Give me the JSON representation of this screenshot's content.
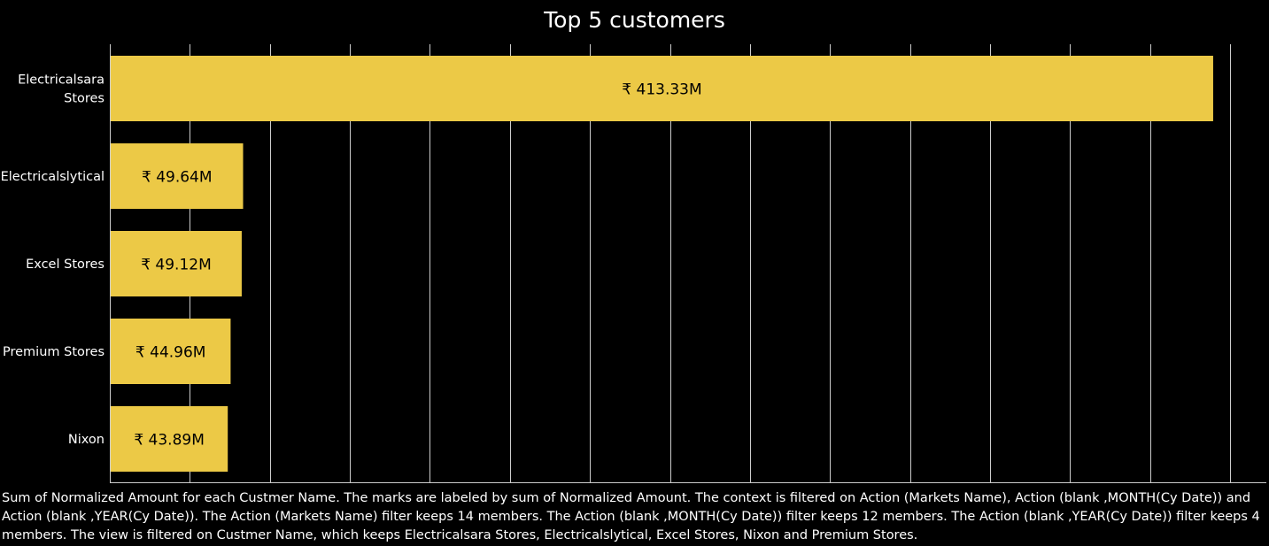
{
  "chart_data": {
    "type": "bar",
    "orientation": "horizontal",
    "title": "Top 5 customers",
    "categories": [
      [
        "Electricalsara",
        "Stores"
      ],
      [
        "Electricalslytical"
      ],
      [
        "Excel Stores"
      ],
      [
        "Premium Stores"
      ],
      [
        "Nixon"
      ]
    ],
    "values": [
      413.33,
      49.64,
      49.12,
      44.96,
      43.89
    ],
    "value_labels": [
      "₹ 413.33M",
      "₹ 49.64M",
      "₹ 49.12M",
      "₹ 44.96M",
      "₹ 43.89M"
    ],
    "unit": "M",
    "xlim": [
      0,
      430
    ],
    "grid_step": 30,
    "grid": true,
    "legend": "none",
    "bar_color": "#ECC946",
    "background": "#000000",
    "grid_color": "#cccccc"
  },
  "caption": "Sum of Normalized Amount for each Custmer Name.  The marks are labeled by sum of Normalized Amount. The context is filtered on Action (Markets Name), Action (blank ,MONTH(Cy Date)) and Action (blank ,YEAR(Cy Date)). The Action (Markets Name) filter keeps 14 members. The Action (blank ,MONTH(Cy Date)) filter keeps 12 members. The Action (blank ,YEAR(Cy Date)) filter keeps 4 members. The view is filtered on Custmer Name, which keeps Electricalsara Stores, Electricalslytical, Excel Stores, Nixon and Premium Stores."
}
